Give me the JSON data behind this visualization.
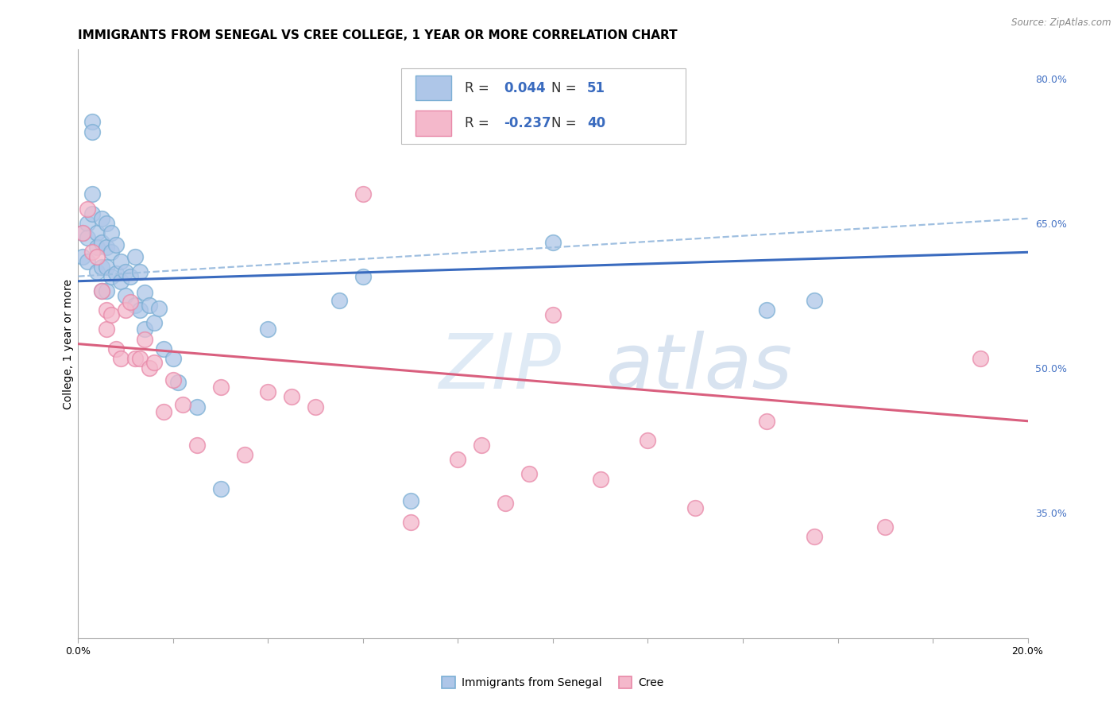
{
  "title": "IMMIGRANTS FROM SENEGAL VS CREE COLLEGE, 1 YEAR OR MORE CORRELATION CHART",
  "source": "Source: ZipAtlas.com",
  "ylabel": "College, 1 year or more",
  "xlim": [
    0.0,
    0.2
  ],
  "ylim": [
    0.22,
    0.83
  ],
  "xticks": [
    0.0,
    0.02,
    0.04,
    0.06,
    0.08,
    0.1,
    0.12,
    0.14,
    0.16,
    0.18,
    0.2
  ],
  "ytick_right_labels": [
    "80.0%",
    "65.0%",
    "50.0%",
    "35.0%"
  ],
  "ytick_right_values": [
    0.8,
    0.65,
    0.5,
    0.35
  ],
  "legend_blue_r_val": "0.044",
  "legend_blue_n_val": "51",
  "legend_pink_r_val": "-0.237",
  "legend_pink_n_val": "40",
  "legend_label_blue": "Immigrants from Senegal",
  "legend_label_pink": "Cree",
  "blue_color": "#aec6e8",
  "blue_edge": "#7bafd4",
  "pink_color": "#f4b8cb",
  "pink_edge": "#e888a8",
  "blue_line_color": "#3a6bbf",
  "pink_line_color": "#d95f7e",
  "dashed_line_color": "#9fbfe0",
  "blue_scatter_x": [
    0.001,
    0.001,
    0.002,
    0.002,
    0.002,
    0.003,
    0.003,
    0.003,
    0.003,
    0.004,
    0.004,
    0.004,
    0.005,
    0.005,
    0.005,
    0.005,
    0.006,
    0.006,
    0.006,
    0.006,
    0.007,
    0.007,
    0.007,
    0.008,
    0.008,
    0.009,
    0.009,
    0.01,
    0.01,
    0.011,
    0.012,
    0.012,
    0.013,
    0.013,
    0.014,
    0.014,
    0.015,
    0.016,
    0.017,
    0.018,
    0.02,
    0.021,
    0.025,
    0.03,
    0.04,
    0.055,
    0.06,
    0.07,
    0.1,
    0.145,
    0.155
  ],
  "blue_scatter_y": [
    0.64,
    0.615,
    0.65,
    0.635,
    0.61,
    0.755,
    0.745,
    0.68,
    0.66,
    0.64,
    0.625,
    0.6,
    0.655,
    0.63,
    0.605,
    0.58,
    0.65,
    0.625,
    0.605,
    0.58,
    0.64,
    0.62,
    0.595,
    0.628,
    0.598,
    0.61,
    0.59,
    0.6,
    0.575,
    0.595,
    0.615,
    0.565,
    0.6,
    0.56,
    0.578,
    0.54,
    0.565,
    0.547,
    0.562,
    0.52,
    0.51,
    0.485,
    0.46,
    0.375,
    0.54,
    0.57,
    0.595,
    0.362,
    0.63,
    0.56,
    0.57
  ],
  "pink_scatter_x": [
    0.001,
    0.002,
    0.003,
    0.004,
    0.005,
    0.006,
    0.006,
    0.007,
    0.008,
    0.009,
    0.01,
    0.011,
    0.012,
    0.013,
    0.014,
    0.015,
    0.016,
    0.018,
    0.02,
    0.022,
    0.025,
    0.03,
    0.035,
    0.04,
    0.045,
    0.05,
    0.06,
    0.07,
    0.08,
    0.085,
    0.09,
    0.095,
    0.1,
    0.11,
    0.12,
    0.13,
    0.145,
    0.155,
    0.17,
    0.19
  ],
  "pink_scatter_y": [
    0.64,
    0.665,
    0.62,
    0.615,
    0.58,
    0.56,
    0.54,
    0.555,
    0.52,
    0.51,
    0.56,
    0.568,
    0.51,
    0.51,
    0.53,
    0.5,
    0.506,
    0.455,
    0.488,
    0.462,
    0.42,
    0.48,
    0.41,
    0.475,
    0.47,
    0.46,
    0.68,
    0.34,
    0.405,
    0.42,
    0.36,
    0.39,
    0.555,
    0.385,
    0.425,
    0.355,
    0.445,
    0.325,
    0.335,
    0.51
  ],
  "blue_trend_x": [
    0.0,
    0.2
  ],
  "blue_trend_y": [
    0.59,
    0.62
  ],
  "pink_trend_x": [
    0.0,
    0.2
  ],
  "pink_trend_y": [
    0.525,
    0.445
  ],
  "dashed_trend_x": [
    0.0,
    0.2
  ],
  "dashed_trend_y": [
    0.595,
    0.655
  ],
  "watermark_zip": "ZIP",
  "watermark_atlas": "atlas",
  "grid_color": "#d8d8d8",
  "background_color": "#ffffff",
  "title_fontsize": 11,
  "axis_label_fontsize": 10,
  "tick_fontsize": 9,
  "legend_fontsize": 11,
  "source_fontsize": 8.5
}
